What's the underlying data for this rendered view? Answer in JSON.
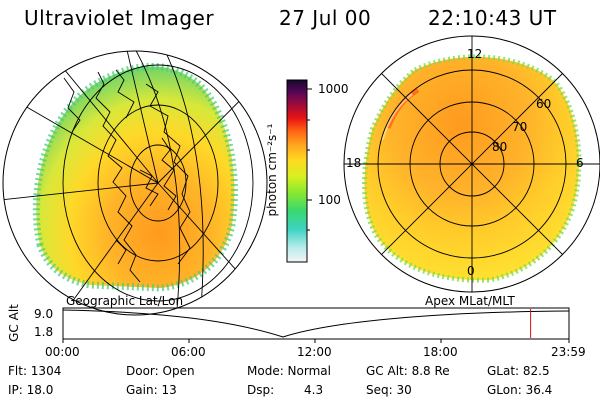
{
  "header": {
    "title": "Ultraviolet Imager",
    "date": "27 Jul 00",
    "time": "22:10:43 UT"
  },
  "colorbar": {
    "label": "photon cm⁻²s⁻¹",
    "ticks": [
      "1000",
      "100"
    ],
    "colors": [
      "#f4f4f4",
      "#b8ecec",
      "#3ed2c2",
      "#38d870",
      "#88e830",
      "#d8f020",
      "#ffd820",
      "#ffa81e",
      "#ff6414",
      "#e81414",
      "#a00c36",
      "#5a0658",
      "#120a2e"
    ]
  },
  "left_panel": {
    "caption": "Geographic Lat/Lon"
  },
  "right_panel": {
    "caption": "Apex MLat/MLT",
    "mlt_labels": {
      "top": "12",
      "left": "18",
      "right": "6",
      "bottom": "0"
    },
    "lat_labels": [
      "60",
      "70",
      "80"
    ]
  },
  "altitude_plot": {
    "ylabel": "GC Alt",
    "yticks": [
      "9.0",
      "1.8"
    ],
    "xticks": [
      "00:00",
      "06:00",
      "12:00",
      "18:00",
      "23:59"
    ],
    "current_marker_hours": 22.18
  },
  "status": {
    "flt": "Flt: 1304",
    "ip": "IP: 18.0",
    "door": "Door: Open",
    "gain": "Gain: 13",
    "mode": "Mode: Normal",
    "dsp_label": "Dsp:",
    "dsp_value": "4.3",
    "gcalt": "GC Alt: 8.8 Re",
    "seq": "Seq: 30",
    "glat": "GLat: 82.5",
    "glon": "GLon: 36.4"
  }
}
